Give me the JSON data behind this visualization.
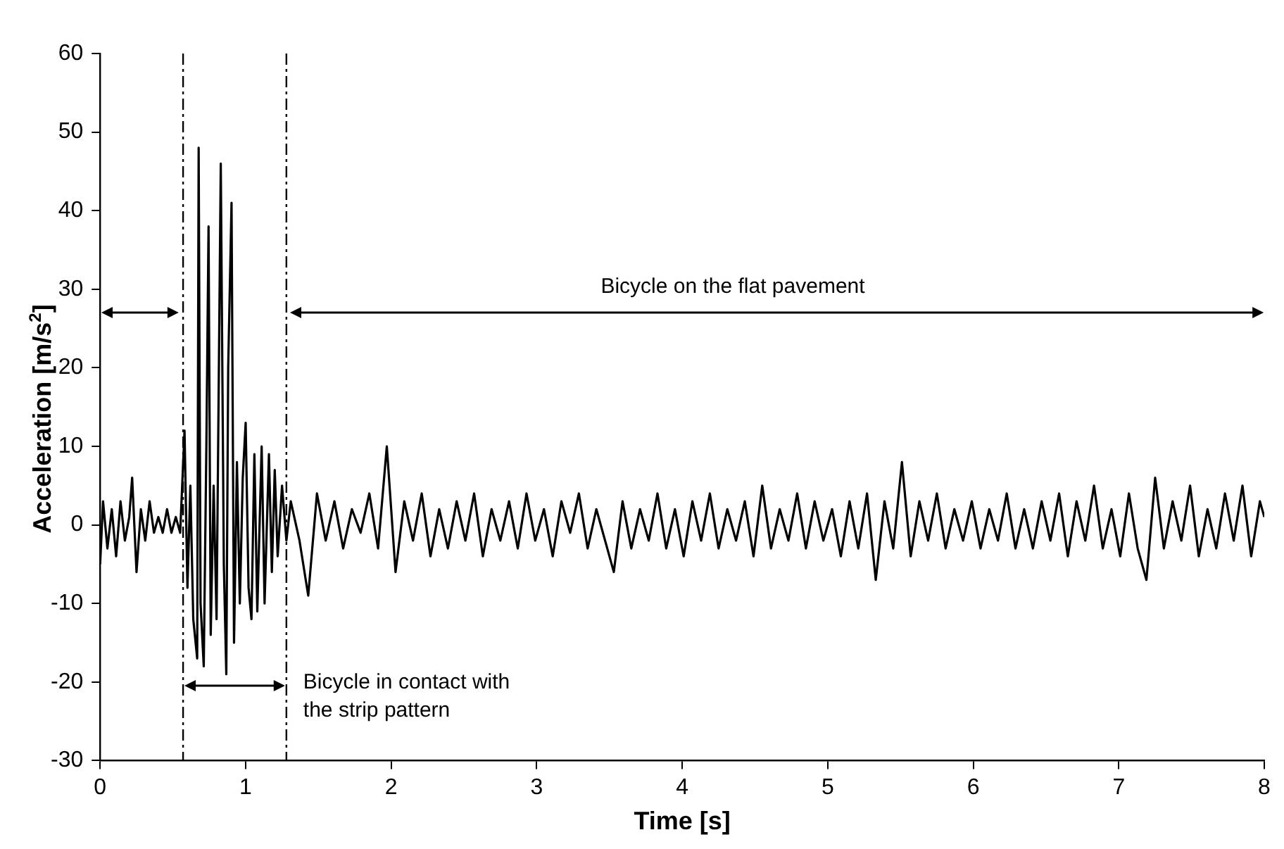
{
  "chart_data": {
    "type": "line",
    "xlabel": "Time [s]",
    "ylabel": "Acceleration [m/s$^{2}$]",
    "xlim": [
      0,
      8
    ],
    "xticks": [
      0,
      1,
      2,
      3,
      4,
      5,
      6,
      7,
      8
    ],
    "ylim": [
      -30,
      60
    ],
    "yticks": [
      -30,
      -20,
      -10,
      0,
      10,
      20,
      30,
      40,
      50,
      60
    ],
    "grid": false,
    "legend": false,
    "marker": "none",
    "line_style": "solid",
    "series": [
      {
        "color": "#000000",
        "x": [
          0,
          0.02,
          0.05,
          0.08,
          0.11,
          0.14,
          0.17,
          0.2,
          0.22,
          0.25,
          0.28,
          0.31,
          0.34,
          0.37,
          0.4,
          0.43,
          0.46,
          0.49,
          0.52,
          0.55,
          0.58,
          0.6,
          0.62,
          0.64,
          0.667,
          0.677,
          0.69,
          0.712,
          0.73,
          0.745,
          0.76,
          0.78,
          0.8,
          0.829,
          0.85,
          0.867,
          0.88,
          0.903,
          0.92,
          0.94,
          0.96,
          0.98,
          1.0,
          1.02,
          1.04,
          1.06,
          1.08,
          1.11,
          1.13,
          1.16,
          1.18,
          1.2,
          1.22,
          1.25,
          1.28,
          1.31,
          1.37,
          1.43,
          1.49,
          1.55,
          1.61,
          1.67,
          1.73,
          1.79,
          1.85,
          1.91,
          1.97,
          2.03,
          2.09,
          2.15,
          2.21,
          2.27,
          2.33,
          2.39,
          2.45,
          2.51,
          2.57,
          2.63,
          2.69,
          2.75,
          2.81,
          2.87,
          2.93,
          2.99,
          3.05,
          3.11,
          3.17,
          3.23,
          3.29,
          3.35,
          3.41,
          3.47,
          3.53,
          3.59,
          3.65,
          3.71,
          3.77,
          3.83,
          3.89,
          3.95,
          4.01,
          4.07,
          4.13,
          4.19,
          4.25,
          4.31,
          4.37,
          4.43,
          4.49,
          4.55,
          4.61,
          4.67,
          4.73,
          4.79,
          4.85,
          4.91,
          4.97,
          5.03,
          5.09,
          5.15,
          5.21,
          5.27,
          5.33,
          5.39,
          5.45,
          5.51,
          5.57,
          5.63,
          5.69,
          5.75,
          5.81,
          5.87,
          5.93,
          5.99,
          6.05,
          6.11,
          6.17,
          6.23,
          6.29,
          6.35,
          6.41,
          6.47,
          6.53,
          6.59,
          6.65,
          6.71,
          6.77,
          6.83,
          6.89,
          6.95,
          7.01,
          7.07,
          7.13,
          7.19,
          7.25,
          7.31,
          7.37,
          7.43,
          7.49,
          7.55,
          7.61,
          7.67,
          7.73,
          7.79,
          7.85,
          7.91,
          7.97,
          8
        ],
        "values": [
          -5,
          3,
          -3,
          2,
          -4,
          3,
          -2,
          1,
          6,
          -6,
          2,
          -2,
          3,
          -1,
          1,
          -1,
          2,
          -1,
          1,
          -1,
          12,
          -8,
          5,
          -12,
          -17,
          48,
          -10,
          -18,
          10,
          38,
          -14,
          5,
          -12,
          46,
          -5,
          -19,
          20,
          41,
          -15,
          8,
          -10,
          6,
          13,
          -8,
          -12,
          9,
          -11,
          10,
          -10,
          9,
          -6,
          7,
          -4,
          5,
          -2,
          3,
          -2,
          -9,
          4,
          -2,
          3,
          -3,
          2,
          -1,
          4,
          -3,
          10,
          -6,
          3,
          -2,
          4,
          -4,
          2,
          -3,
          3,
          -2,
          4,
          -4,
          2,
          -2,
          3,
          -3,
          4,
          -2,
          2,
          -4,
          3,
          -1,
          4,
          -3,
          2,
          -2,
          -6,
          3,
          -3,
          2,
          -2,
          4,
          -3,
          2,
          -4,
          3,
          -2,
          4,
          -3,
          2,
          -2,
          3,
          -4,
          5,
          -3,
          2,
          -2,
          4,
          -3,
          3,
          -2,
          2,
          -4,
          3,
          -3,
          4,
          -7,
          3,
          -3,
          8,
          -4,
          3,
          -2,
          4,
          -3,
          2,
          -2,
          3,
          -3,
          2,
          -2,
          4,
          -3,
          2,
          -3,
          3,
          -2,
          4,
          -4,
          3,
          -2,
          5,
          -3,
          2,
          -4,
          4,
          -3,
          -7,
          6,
          -3,
          3,
          -2,
          5,
          -4,
          2,
          -3,
          4,
          -2,
          5,
          -4,
          3,
          1
        ]
      }
    ],
    "ref_lines": [
      {
        "axis": "x",
        "value": 0.57,
        "color": "#000000",
        "line_style": "dashed"
      },
      {
        "axis": "x",
        "value": 1.28,
        "color": "#000000",
        "line_style": "dashed"
      }
    ],
    "annotations": [
      "Bicycle on the flat pavement",
      "Bicycle in contact with the strip pattern"
    ]
  }
}
